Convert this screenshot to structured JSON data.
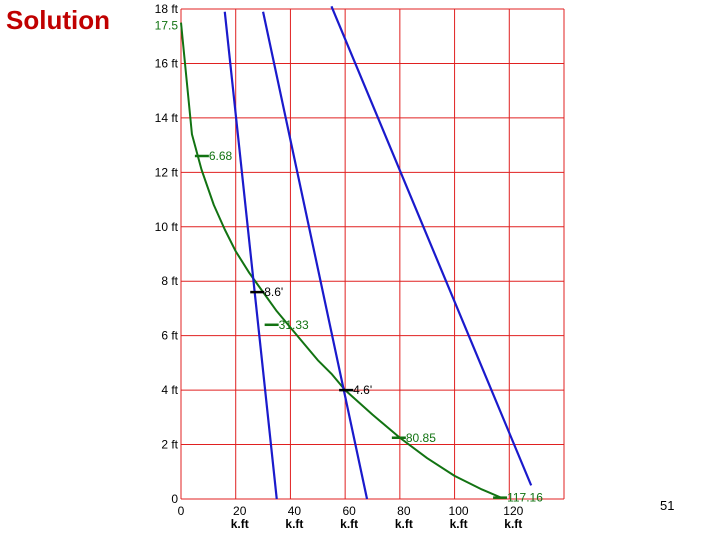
{
  "slide": {
    "title": "Solution",
    "page_number": "51"
  },
  "colors": {
    "title": "#c00000",
    "grid": "#e02020",
    "curve": "#127312",
    "lines": "#1a1acc",
    "marker_black": "#000000",
    "axis_text": "#000000"
  },
  "chart_data": {
    "type": "line",
    "xlim": [
      0,
      140
    ],
    "ylim": [
      0,
      18
    ],
    "x_gridlines": [
      0,
      20,
      40,
      60,
      80,
      100,
      120,
      140
    ],
    "y_gridlines": [
      0,
      2,
      4,
      6,
      8,
      10,
      12,
      14,
      16,
      18
    ],
    "x_tick_labels": [
      {
        "x": 0,
        "value": "0",
        "unit": ""
      },
      {
        "x": 20,
        "value": "20",
        "unit": "k.ft"
      },
      {
        "x": 40,
        "value": "40",
        "unit": "k.ft"
      },
      {
        "x": 60,
        "value": "60",
        "unit": "k.ft"
      },
      {
        "x": 80,
        "value": "80",
        "unit": "k.ft"
      },
      {
        "x": 100,
        "value": "100",
        "unit": "k.ft"
      },
      {
        "x": 120,
        "value": "120",
        "unit": "k.ft"
      }
    ],
    "y_tick_labels": [
      {
        "y": 18,
        "label": "18 ft"
      },
      {
        "y": 16,
        "label": "16 ft"
      },
      {
        "y": 14,
        "label": "14 ft"
      },
      {
        "y": 12,
        "label": "12 ft"
      },
      {
        "y": 10,
        "label": "10 ft"
      },
      {
        "y": 8,
        "label": "8 ft"
      },
      {
        "y": 6,
        "label": "6 ft"
      },
      {
        "y": 4,
        "label": "4 ft"
      },
      {
        "y": 2,
        "label": "2 ft"
      },
      {
        "y": 0,
        "label": "0"
      }
    ],
    "y_extra_label": {
      "y": 17.5,
      "label": "17.5"
    },
    "series": [
      {
        "kind": "curve",
        "points": [
          [
            0,
            17.5
          ],
          [
            4,
            13.4
          ],
          [
            7.5,
            12.1
          ],
          [
            12,
            10.8
          ],
          [
            16,
            9.9
          ],
          [
            20,
            9.1
          ],
          [
            25,
            8.3
          ],
          [
            30,
            7.6
          ],
          [
            35,
            6.9
          ],
          [
            40,
            6.3
          ],
          [
            45,
            5.7
          ],
          [
            50,
            5.1
          ],
          [
            55,
            4.6
          ],
          [
            60,
            4.0
          ],
          [
            70,
            3.1
          ],
          [
            80,
            2.25
          ],
          [
            90,
            1.5
          ],
          [
            100,
            0.85
          ],
          [
            110,
            0.35
          ],
          [
            117,
            0.05
          ]
        ]
      },
      {
        "kind": "line",
        "points": [
          [
            16,
            17.9
          ],
          [
            35,
            0
          ]
        ]
      },
      {
        "kind": "line",
        "points": [
          [
            30,
            17.9
          ],
          [
            68,
            0
          ]
        ]
      },
      {
        "kind": "line",
        "points": [
          [
            55,
            18.1
          ],
          [
            128,
            0.5
          ]
        ]
      }
    ],
    "annotations": [
      {
        "label": "6.68",
        "x": 8,
        "y": 12.6,
        "kind": "curve"
      },
      {
        "label": "8.6'",
        "x": 27.5,
        "y": 7.6,
        "kind": "intersection"
      },
      {
        "label": "31.33",
        "x": 33.5,
        "y": 6.4,
        "kind": "curve"
      },
      {
        "label": "4.6'",
        "x": 60,
        "y": 4.0,
        "kind": "intersection"
      },
      {
        "label": "80.85",
        "x": 80,
        "y": 2.25,
        "kind": "curve"
      },
      {
        "label": "117.16",
        "x": 117,
        "y": 0.05,
        "kind": "curve"
      }
    ]
  }
}
